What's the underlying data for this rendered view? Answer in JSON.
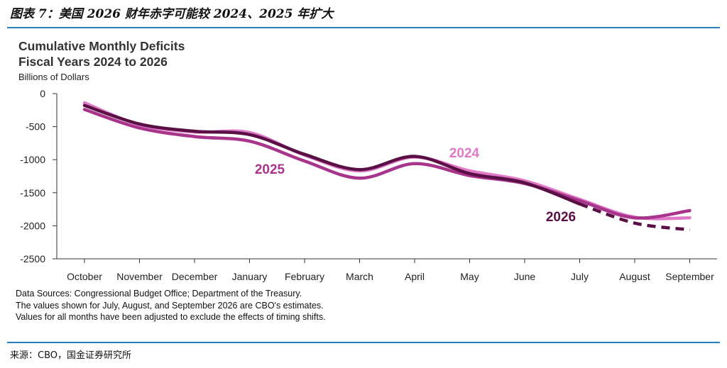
{
  "figure": {
    "caption": "图表 7：美国 2026 财年赤字可能较 2024、2025 年扩大",
    "source": "来源：CBO，国金证券研究所"
  },
  "chart_data": {
    "type": "line",
    "title_lines": [
      "Cumulative Monthly Deficits",
      "Fiscal Years 2024 to 2026"
    ],
    "ylabel": "Billions of Dollars",
    "xlabel": "",
    "categories": [
      "October",
      "November",
      "December",
      "January",
      "February",
      "March",
      "April",
      "May",
      "June",
      "July",
      "August",
      "September"
    ],
    "y_ticks": [
      "0",
      "-500",
      "-1000",
      "-1500",
      "-2000",
      "-2500"
    ],
    "y_tick_values": [
      0,
      -500,
      -1000,
      -1500,
      -2000,
      -2500
    ],
    "ylim": [
      -2500,
      0
    ],
    "grid": false,
    "series": [
      {
        "name": "2024",
        "color": "#e07ac8",
        "style": "solid",
        "values": [
          -140,
          -470,
          -580,
          -590,
          -930,
          -1170,
          -960,
          -1170,
          -1320,
          -1600,
          -1870,
          -1880
        ]
      },
      {
        "name": "2025",
        "color": "#a8348c",
        "style": "solid",
        "values": [
          -240,
          -520,
          -650,
          -720,
          -1020,
          -1280,
          -1060,
          -1240,
          -1360,
          -1620,
          -1880,
          -1770
        ]
      },
      {
        "name": "2026",
        "color": "#5a0f45",
        "style": "solid-then-dashed",
        "dashed_from_index": 9,
        "values": [
          -180,
          -460,
          -570,
          -620,
          -920,
          -1150,
          -950,
          -1210,
          -1350,
          -1670,
          -1960,
          -2060
        ]
      }
    ],
    "series_labels": [
      {
        "text": "2024",
        "color": "#e07ac8"
      },
      {
        "text": "2025",
        "color": "#a8348c"
      },
      {
        "text": "2026",
        "color": "#5a0f45"
      }
    ],
    "notes": [
      "Data Sources: Congressional Budget Office; Department of the Treasury.",
      "The values shown for July, August, and September 2026 are CBO's estimates.",
      "Values for all months have been adjusted to exclude the effects of timing shifts."
    ]
  }
}
